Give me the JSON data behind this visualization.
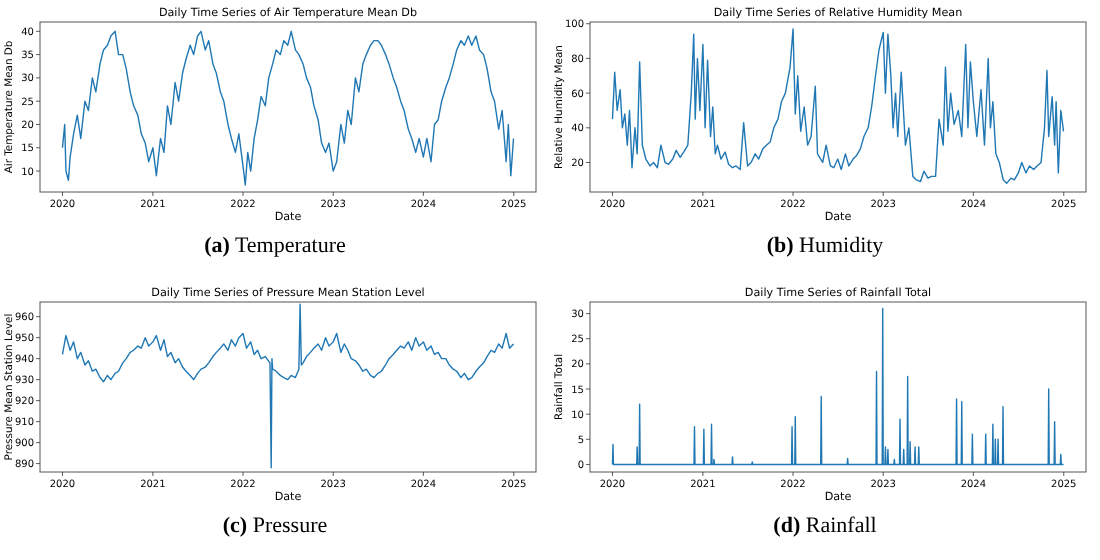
{
  "chart_data": [
    {
      "type": "line",
      "title": "Daily Time Series of Air Temperature Mean Db",
      "xlabel": "Date",
      "ylabel": "Air Temperature Mean Db",
      "annotations": [
        "(a) Temperature"
      ],
      "xlim": [
        "2019-10-02",
        "2025-04-01"
      ],
      "xticks": [
        {
          "value": "2020-01-01",
          "label": "2020"
        },
        {
          "value": "2021-01-01",
          "label": "2021"
        },
        {
          "value": "2022-01-01",
          "label": "2022"
        },
        {
          "value": "2023-01-01",
          "label": "2023"
        },
        {
          "value": "2024-01-01",
          "label": "2024"
        },
        {
          "value": "2025-01-01",
          "label": "2025"
        }
      ],
      "ylim": [
        5.5,
        42
      ],
      "yticks": [
        10,
        15,
        20,
        25,
        30,
        35,
        40
      ],
      "grid": false,
      "series": [
        {
          "color": "#1f77b4",
          "x": [
            "2020-01-01",
            "2020-01-10",
            "2020-01-15",
            "2020-01-25",
            "2020-02-01",
            "2020-02-15",
            "2020-03-01",
            "2020-03-15",
            "2020-04-01",
            "2020-04-15",
            "2020-05-01",
            "2020-05-15",
            "2020-06-01",
            "2020-06-15",
            "2020-07-01",
            "2020-07-15",
            "2020-08-01",
            "2020-08-15",
            "2020-09-01",
            "2020-09-15",
            "2020-10-01",
            "2020-10-15",
            "2020-11-01",
            "2020-11-15",
            "2020-12-01",
            "2020-12-15",
            "2021-01-01",
            "2021-01-15",
            "2021-02-01",
            "2021-02-15",
            "2021-03-01",
            "2021-03-15",
            "2021-04-01",
            "2021-04-15",
            "2021-05-01",
            "2021-05-15",
            "2021-06-01",
            "2021-06-15",
            "2021-07-01",
            "2021-07-15",
            "2021-08-01",
            "2021-08-15",
            "2021-09-01",
            "2021-09-15",
            "2021-10-01",
            "2021-10-15",
            "2021-11-01",
            "2021-11-15",
            "2021-12-01",
            "2021-12-15",
            "2022-01-01",
            "2022-01-10",
            "2022-01-20",
            "2022-02-01",
            "2022-02-15",
            "2022-03-01",
            "2022-03-15",
            "2022-04-01",
            "2022-04-15",
            "2022-05-01",
            "2022-05-15",
            "2022-06-01",
            "2022-06-15",
            "2022-07-01",
            "2022-07-15",
            "2022-08-01",
            "2022-08-15",
            "2022-09-01",
            "2022-09-15",
            "2022-10-01",
            "2022-10-15",
            "2022-11-01",
            "2022-11-15",
            "2022-12-01",
            "2022-12-15",
            "2023-01-01",
            "2023-01-15",
            "2023-02-01",
            "2023-02-15",
            "2023-03-01",
            "2023-03-15",
            "2023-04-01",
            "2023-04-15",
            "2023-05-01",
            "2023-05-15",
            "2023-06-01",
            "2023-06-15",
            "2023-07-01",
            "2023-07-15",
            "2023-08-01",
            "2023-08-15",
            "2023-09-01",
            "2023-09-15",
            "2023-10-01",
            "2023-10-15",
            "2023-11-01",
            "2023-11-15",
            "2023-12-01",
            "2023-12-15",
            "2024-01-01",
            "2024-01-15",
            "2024-02-01",
            "2024-02-15",
            "2024-03-01",
            "2024-03-15",
            "2024-04-01",
            "2024-04-15",
            "2024-05-01",
            "2024-05-15",
            "2024-06-01",
            "2024-06-15",
            "2024-07-01",
            "2024-07-15",
            "2024-08-01",
            "2024-08-15",
            "2024-09-01",
            "2024-09-15",
            "2024-10-01",
            "2024-10-15",
            "2024-11-01",
            "2024-11-15",
            "2024-12-01",
            "2024-12-10",
            "2024-12-20",
            "2024-12-31"
          ],
          "values": [
            15,
            20,
            10,
            8,
            13,
            18,
            22,
            17,
            25,
            23,
            30,
            27,
            33,
            36,
            37,
            39,
            40,
            35,
            35,
            32,
            27,
            24,
            22,
            18,
            16,
            12,
            15,
            9,
            17,
            14,
            24,
            20,
            29,
            25,
            31,
            34,
            37,
            35,
            39,
            40,
            36,
            38,
            33,
            31,
            27,
            25,
            20,
            17,
            14,
            18,
            11,
            7,
            14,
            10,
            17,
            21,
            26,
            24,
            30,
            33,
            36,
            35,
            38,
            37,
            40,
            36,
            35,
            33,
            30,
            28,
            24,
            21,
            16,
            14,
            16,
            10,
            12,
            20,
            16,
            23,
            20,
            30,
            27,
            33,
            35,
            37,
            38,
            38,
            37,
            35,
            33,
            30,
            28,
            25,
            23,
            19,
            17,
            14,
            17,
            13,
            17,
            12,
            20,
            21,
            25,
            28,
            30,
            33,
            36,
            38,
            37,
            39,
            37,
            39,
            36,
            35,
            32,
            27,
            25,
            19,
            23,
            12,
            20,
            9,
            17
          ]
        }
      ]
    },
    {
      "type": "line",
      "title": "Daily Time Series of Relative Humidity Mean",
      "xlabel": "Date",
      "ylabel": "Relative Humidity Mean",
      "annotations": [
        "(b) Humidity"
      ],
      "xlim": [
        "2019-10-02",
        "2025-04-01"
      ],
      "xticks": [
        {
          "value": "2020-01-01",
          "label": "2020"
        },
        {
          "value": "2021-01-01",
          "label": "2021"
        },
        {
          "value": "2022-01-01",
          "label": "2022"
        },
        {
          "value": "2023-01-01",
          "label": "2023"
        },
        {
          "value": "2024-01-01",
          "label": "2024"
        },
        {
          "value": "2025-01-01",
          "label": "2025"
        }
      ],
      "ylim": [
        3,
        101
      ],
      "yticks": [
        20,
        40,
        60,
        80,
        100
      ],
      "grid": false,
      "series": [
        {
          "color": "#1f77b4",
          "x": [
            "2020-01-01",
            "2020-01-10",
            "2020-01-20",
            "2020-02-01",
            "2020-02-10",
            "2020-02-20",
            "2020-03-01",
            "2020-03-10",
            "2020-03-20",
            "2020-04-01",
            "2020-04-10",
            "2020-04-20",
            "2020-05-01",
            "2020-05-15",
            "2020-06-01",
            "2020-06-15",
            "2020-07-01",
            "2020-07-15",
            "2020-08-01",
            "2020-08-15",
            "2020-09-01",
            "2020-09-15",
            "2020-10-01",
            "2020-10-15",
            "2020-11-01",
            "2020-11-15",
            "2020-11-25",
            "2020-12-01",
            "2020-12-10",
            "2020-12-20",
            "2021-01-01",
            "2021-01-10",
            "2021-01-20",
            "2021-02-01",
            "2021-02-10",
            "2021-02-20",
            "2021-03-01",
            "2021-03-15",
            "2021-04-01",
            "2021-04-15",
            "2021-05-01",
            "2021-05-15",
            "2021-06-01",
            "2021-06-15",
            "2021-07-01",
            "2021-07-15",
            "2021-08-01",
            "2021-08-15",
            "2021-09-01",
            "2021-09-15",
            "2021-10-01",
            "2021-10-15",
            "2021-11-01",
            "2021-11-15",
            "2021-12-01",
            "2021-12-20",
            "2022-01-01",
            "2022-01-10",
            "2022-01-20",
            "2022-02-01",
            "2022-02-15",
            "2022-03-01",
            "2022-03-15",
            "2022-04-01",
            "2022-04-10",
            "2022-05-01",
            "2022-05-15",
            "2022-06-01",
            "2022-06-15",
            "2022-07-01",
            "2022-07-15",
            "2022-08-01",
            "2022-08-15",
            "2022-09-01",
            "2022-09-15",
            "2022-10-01",
            "2022-10-15",
            "2022-11-01",
            "2022-11-15",
            "2022-12-01",
            "2022-12-15",
            "2023-01-01",
            "2023-01-10",
            "2023-01-20",
            "2023-02-01",
            "2023-02-10",
            "2023-02-20",
            "2023-03-01",
            "2023-03-15",
            "2023-04-01",
            "2023-04-15",
            "2023-05-01",
            "2023-05-15",
            "2023-06-01",
            "2023-06-15",
            "2023-07-01",
            "2023-07-15",
            "2023-08-01",
            "2023-08-15",
            "2023-09-01",
            "2023-09-10",
            "2023-09-20",
            "2023-10-01",
            "2023-10-15",
            "2023-11-01",
            "2023-11-15",
            "2023-12-01",
            "2023-12-10",
            "2023-12-20",
            "2024-01-01",
            "2024-01-15",
            "2024-02-01",
            "2024-02-15",
            "2024-03-01",
            "2024-03-10",
            "2024-03-20",
            "2024-04-01",
            "2024-04-15",
            "2024-05-01",
            "2024-05-15",
            "2024-06-01",
            "2024-06-15",
            "2024-07-01",
            "2024-07-15",
            "2024-08-01",
            "2024-08-15",
            "2024-09-01",
            "2024-09-15",
            "2024-10-01",
            "2024-10-15",
            "2024-10-25",
            "2024-11-01",
            "2024-11-15",
            "2024-11-25",
            "2024-12-01",
            "2024-12-10",
            "2024-12-20",
            "2024-12-31"
          ],
          "values": [
            45,
            72,
            50,
            62,
            40,
            48,
            30,
            50,
            17,
            40,
            25,
            78,
            30,
            22,
            18,
            20,
            17,
            30,
            20,
            19,
            22,
            27,
            23,
            26,
            30,
            60,
            94,
            45,
            80,
            50,
            88,
            40,
            79,
            35,
            52,
            25,
            30,
            22,
            26,
            19,
            17,
            18,
            16,
            43,
            18,
            20,
            25,
            22,
            28,
            30,
            32,
            40,
            45,
            55,
            60,
            75,
            97,
            48,
            70,
            38,
            52,
            30,
            35,
            64,
            25,
            20,
            30,
            18,
            17,
            22,
            16,
            25,
            18,
            22,
            24,
            28,
            35,
            40,
            52,
            70,
            85,
            95,
            60,
            94,
            70,
            40,
            60,
            35,
            72,
            30,
            40,
            12,
            10,
            9,
            15,
            11,
            12,
            12,
            45,
            30,
            75,
            38,
            60,
            42,
            50,
            35,
            88,
            40,
            78,
            55,
            35,
            62,
            30,
            80,
            40,
            55,
            25,
            20,
            10,
            8,
            11,
            10,
            14,
            20,
            14,
            18,
            16,
            18,
            20,
            40,
            73,
            35,
            58,
            30,
            55,
            14,
            50,
            38
          ]
        }
      ]
    },
    {
      "type": "line",
      "title": "Daily Time Series of Pressure Mean Station Level",
      "xlabel": "Date",
      "ylabel": "Pressure Mean Station Level",
      "annotations": [
        "(c) Pressure"
      ],
      "xlim": [
        "2019-10-02",
        "2025-04-01"
      ],
      "xticks": [
        {
          "value": "2020-01-01",
          "label": "2020"
        },
        {
          "value": "2021-01-01",
          "label": "2021"
        },
        {
          "value": "2022-01-01",
          "label": "2022"
        },
        {
          "value": "2023-01-01",
          "label": "2023"
        },
        {
          "value": "2024-01-01",
          "label": "2024"
        },
        {
          "value": "2025-01-01",
          "label": "2025"
        }
      ],
      "ylim": [
        886,
        967
      ],
      "yticks": [
        890,
        900,
        910,
        920,
        930,
        940,
        950,
        960
      ],
      "grid": false,
      "series": [
        {
          "color": "#1f77b4",
          "x": [
            "2020-01-01",
            "2020-01-15",
            "2020-02-01",
            "2020-02-15",
            "2020-03-01",
            "2020-03-15",
            "2020-04-01",
            "2020-04-15",
            "2020-05-01",
            "2020-05-15",
            "2020-06-01",
            "2020-06-15",
            "2020-07-01",
            "2020-07-15",
            "2020-08-01",
            "2020-08-15",
            "2020-09-01",
            "2020-09-15",
            "2020-10-01",
            "2020-10-15",
            "2020-11-01",
            "2020-11-15",
            "2020-12-01",
            "2020-12-15",
            "2021-01-01",
            "2021-01-15",
            "2021-02-01",
            "2021-02-15",
            "2021-03-01",
            "2021-03-15",
            "2021-04-01",
            "2021-04-15",
            "2021-05-01",
            "2021-05-15",
            "2021-06-01",
            "2021-06-15",
            "2021-07-01",
            "2021-07-15",
            "2021-08-01",
            "2021-08-15",
            "2021-09-01",
            "2021-09-15",
            "2021-10-01",
            "2021-10-15",
            "2021-11-01",
            "2021-11-15",
            "2021-12-01",
            "2021-12-15",
            "2022-01-01",
            "2022-01-15",
            "2022-02-01",
            "2022-02-15",
            "2022-03-01",
            "2022-03-15",
            "2022-04-01",
            "2022-04-20",
            "2022-04-25",
            "2022-04-28",
            "2022-05-01",
            "2022-05-15",
            "2022-06-01",
            "2022-06-15",
            "2022-07-01",
            "2022-07-15",
            "2022-08-01",
            "2022-08-15",
            "2022-08-20",
            "2022-08-25",
            "2022-09-01",
            "2022-09-15",
            "2022-10-01",
            "2022-10-15",
            "2022-11-01",
            "2022-11-15",
            "2022-12-01",
            "2022-12-15",
            "2023-01-01",
            "2023-01-15",
            "2023-02-01",
            "2023-02-15",
            "2023-03-01",
            "2023-03-15",
            "2023-04-01",
            "2023-04-15",
            "2023-05-01",
            "2023-05-15",
            "2023-06-01",
            "2023-06-15",
            "2023-07-01",
            "2023-07-15",
            "2023-08-01",
            "2023-08-15",
            "2023-09-01",
            "2023-09-15",
            "2023-10-01",
            "2023-10-15",
            "2023-11-01",
            "2023-11-15",
            "2023-12-01",
            "2023-12-15",
            "2024-01-01",
            "2024-01-15",
            "2024-02-01",
            "2024-02-15",
            "2024-03-01",
            "2024-03-15",
            "2024-04-01",
            "2024-04-15",
            "2024-05-01",
            "2024-05-15",
            "2024-06-01",
            "2024-06-15",
            "2024-07-01",
            "2024-07-15",
            "2024-08-01",
            "2024-08-15",
            "2024-09-01",
            "2024-09-15",
            "2024-10-01",
            "2024-10-15",
            "2024-11-01",
            "2024-11-15",
            "2024-12-01",
            "2024-12-15",
            "2024-12-31"
          ],
          "values": [
            942,
            951,
            944,
            948,
            940,
            943,
            937,
            939,
            934,
            935,
            931,
            929,
            932,
            930,
            933,
            934,
            938,
            940,
            943,
            944,
            946,
            945,
            950,
            946,
            948,
            951,
            944,
            949,
            941,
            943,
            938,
            940,
            936,
            934,
            932,
            930,
            933,
            935,
            936,
            938,
            941,
            943,
            945,
            947,
            944,
            949,
            946,
            950,
            952,
            945,
            948,
            942,
            944,
            940,
            941,
            938,
            888,
            940,
            935,
            934,
            932,
            931,
            930,
            932,
            931,
            935,
            966,
            937,
            938,
            941,
            943,
            945,
            947,
            944,
            950,
            946,
            948,
            952,
            943,
            947,
            944,
            940,
            939,
            937,
            934,
            935,
            932,
            931,
            933,
            934,
            937,
            940,
            942,
            944,
            946,
            945,
            948,
            944,
            950,
            946,
            948,
            944,
            946,
            942,
            943,
            940,
            940,
            937,
            935,
            934,
            931,
            933,
            930,
            931,
            934,
            936,
            938,
            941,
            944,
            943,
            947,
            945,
            952,
            945,
            947
          ]
        }
      ]
    },
    {
      "type": "line",
      "title": "Daily Time Series of Rainfall Total",
      "xlabel": "Date",
      "ylabel": "Rainfall Total",
      "annotations": [
        "(d) Rainfall"
      ],
      "xlim": [
        "2019-10-02",
        "2025-04-01"
      ],
      "xticks": [
        {
          "value": "2020-01-01",
          "label": "2020"
        },
        {
          "value": "2021-01-01",
          "label": "2021"
        },
        {
          "value": "2022-01-01",
          "label": "2022"
        },
        {
          "value": "2023-01-01",
          "label": "2023"
        },
        {
          "value": "2024-01-01",
          "label": "2024"
        },
        {
          "value": "2025-01-01",
          "label": "2025"
        }
      ],
      "ylim": [
        -1.5,
        32.3
      ],
      "yticks": [
        0,
        5,
        10,
        15,
        20,
        25,
        30
      ],
      "grid": false,
      "series": [
        {
          "color": "#1f77b4",
          "x": [
            "2020-01-01",
            "2020-01-03",
            "2020-01-05",
            "2020-04-08",
            "2020-04-10",
            "2020-04-12",
            "2020-04-18",
            "2020-04-20",
            "2020-04-22",
            "2020-11-26",
            "2020-11-28",
            "2020-11-30",
            "2021-01-03",
            "2021-01-05",
            "2021-01-07",
            "2021-02-03",
            "2021-02-05",
            "2021-02-07",
            "2021-02-13",
            "2021-02-15",
            "2021-02-17",
            "2021-04-29",
            "2021-05-01",
            "2021-05-03",
            "2021-07-18",
            "2021-07-20",
            "2021-07-22",
            "2021-12-26",
            "2021-12-28",
            "2021-12-30",
            "2022-01-08",
            "2022-01-10",
            "2022-01-12",
            "2022-04-23",
            "2022-04-25",
            "2022-04-27",
            "2022-08-08",
            "2022-08-10",
            "2022-08-12",
            "2022-12-03",
            "2022-12-05",
            "2022-12-07",
            "2022-12-28",
            "2022-12-30",
            "2023-01-01",
            "2023-01-08",
            "2023-01-10",
            "2023-01-12",
            "2023-01-18",
            "2023-01-20",
            "2023-01-22",
            "2023-02-13",
            "2023-02-15",
            "2023-02-17",
            "2023-03-08",
            "2023-03-10",
            "2023-03-12",
            "2023-03-23",
            "2023-03-25",
            "2023-03-27",
            "2023-04-08",
            "2023-04-10",
            "2023-04-12",
            "2023-04-18",
            "2023-04-20",
            "2023-04-22",
            "2023-05-08",
            "2023-05-10",
            "2023-05-12",
            "2023-05-23",
            "2023-05-25",
            "2023-05-27",
            "2023-10-23",
            "2023-10-25",
            "2023-10-27",
            "2023-11-13",
            "2023-11-15",
            "2023-11-17",
            "2023-12-26",
            "2023-12-28",
            "2023-12-30",
            "2024-02-18",
            "2024-02-20",
            "2024-02-22",
            "2024-03-18",
            "2024-03-20",
            "2024-03-22",
            "2024-03-28",
            "2024-03-30",
            "2024-04-01",
            "2024-04-08",
            "2024-04-10",
            "2024-04-12",
            "2024-04-28",
            "2024-04-30",
            "2024-05-02",
            "2024-10-30",
            "2024-11-01",
            "2024-11-03",
            "2024-11-23",
            "2024-11-25",
            "2024-11-27",
            "2024-12-18",
            "2024-12-20",
            "2024-12-22",
            "2024-12-31"
          ],
          "values": [
            0,
            4,
            0,
            0,
            3.5,
            0,
            0,
            12,
            0,
            0,
            7.5,
            0,
            0,
            7,
            0,
            0,
            8,
            0,
            0,
            1,
            0,
            0,
            1.5,
            0,
            0,
            0.5,
            0,
            0,
            7.5,
            0,
            0,
            9.5,
            0,
            0,
            13.5,
            0,
            0,
            1.2,
            0,
            0,
            18.5,
            0,
            0,
            31,
            0,
            0,
            3.5,
            0,
            0,
            3,
            0,
            0,
            1,
            0,
            0,
            9,
            0,
            0,
            3,
            0,
            0,
            17.5,
            0,
            0,
            4.5,
            0,
            0,
            3.5,
            0,
            0,
            3.5,
            0,
            0,
            13,
            0,
            0,
            12.5,
            0,
            0,
            6,
            0,
            0,
            6,
            0,
            0,
            8,
            0,
            0,
            5,
            0,
            0,
            5,
            0,
            0,
            11.5,
            0,
            0,
            15,
            0,
            0,
            8.5,
            0,
            0,
            2,
            0,
            0
          ]
        }
      ]
    }
  ]
}
